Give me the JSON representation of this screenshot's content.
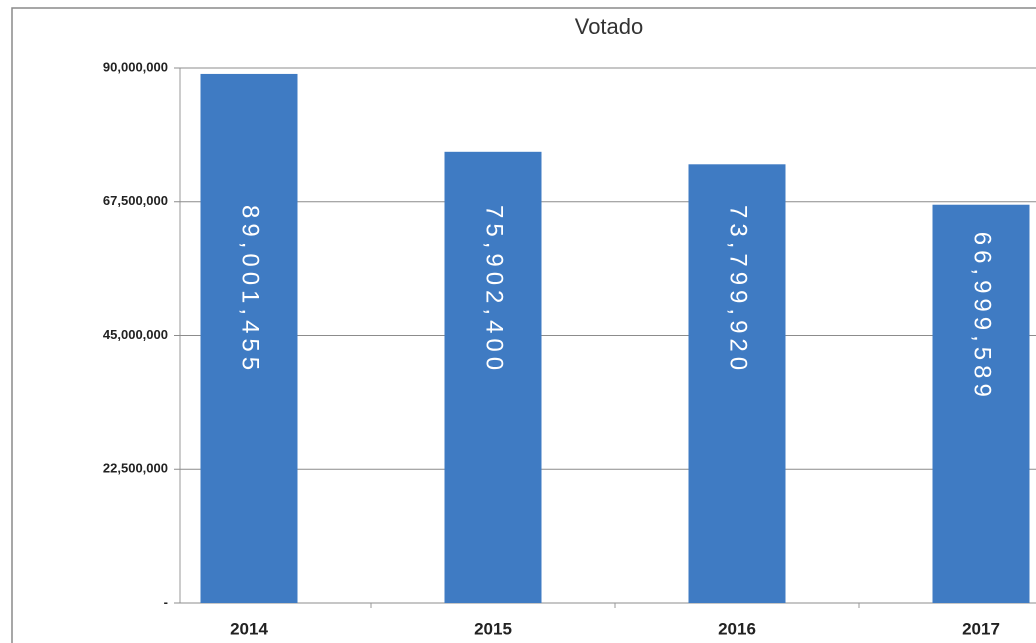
{
  "chart_data": {
    "type": "bar",
    "title": "Votado",
    "categories": [
      "2014",
      "2015",
      "2016",
      "2017"
    ],
    "values": [
      89001455,
      75902400,
      73799920,
      66999589
    ],
    "value_labels": [
      "89,001,455",
      "75,902,400",
      "73,799,920",
      "66,999,589"
    ],
    "color": "#3f7bc3",
    "ylim": [
      0,
      90000000
    ],
    "yticks": [
      {
        "value": 0,
        "label": "-"
      },
      {
        "value": 22500000,
        "label": "22,500,000"
      },
      {
        "value": 45000000,
        "label": "45,000,000"
      },
      {
        "value": 67500000,
        "label": "67,500,000"
      },
      {
        "value": 90000000,
        "label": "90,000,000"
      }
    ],
    "grid": true
  }
}
